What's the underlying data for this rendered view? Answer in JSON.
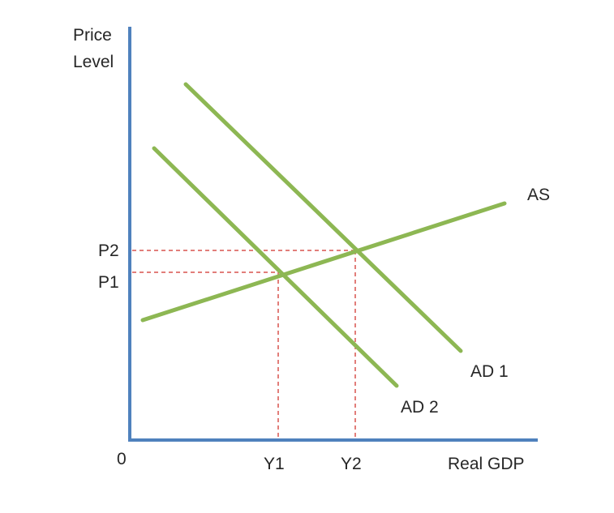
{
  "diagram": {
    "y_axis_label_line1": "Price",
    "y_axis_label_line2": "Level",
    "x_axis_label": "Real GDP",
    "origin_label": "0",
    "price_levels": [
      "P2",
      "P1"
    ],
    "output_levels": [
      "Y1",
      "Y2"
    ],
    "curves": {
      "as": "AS",
      "ad1": "AD 1",
      "ad2": "AD 2"
    },
    "colors": {
      "axis": "#4f81bd",
      "curve": "#8db753",
      "guide": "#d9534f",
      "text": "#262626"
    }
  }
}
